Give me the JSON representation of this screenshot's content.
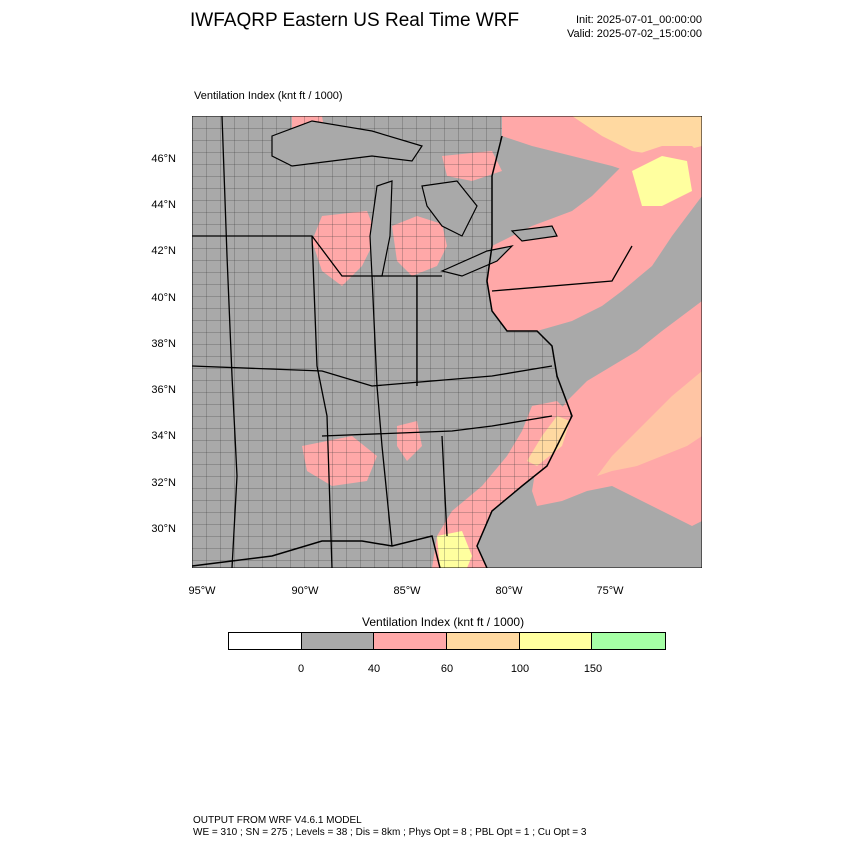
{
  "header": {
    "title": "IWFAQRP Eastern US Real Time WRF",
    "init": "Init: 2025-07-01_00:00:00",
    "valid": "Valid: 2025-07-02_15:00:00"
  },
  "map": {
    "field_label": "Ventilation Index   (knt ft / 1000)",
    "lat_labels": [
      "46°N",
      "44°N",
      "42°N",
      "40°N",
      "38°N",
      "36°N",
      "34°N",
      "32°N",
      "30°N"
    ],
    "lon_labels": [
      "95°W",
      "90°W",
      "85°W",
      "80°W",
      "75°W"
    ],
    "colors": {
      "gray": "#a9a9a9",
      "pink": "#ffa8a8",
      "orange": "#ffd9a1",
      "yellow": "#ffff9f",
      "green": "#a5ffa5"
    }
  },
  "colorbar": {
    "title": "Ventilation Index   (knt ft / 1000)",
    "segments": [
      {
        "color": "#ffffff"
      },
      {
        "color": "#a9a9a9"
      },
      {
        "color": "#ffa8a8"
      },
      {
        "color": "#ffd9a1"
      },
      {
        "color": "#ffff9f"
      },
      {
        "color": "#a5ffa5"
      }
    ],
    "ticks": [
      "0",
      "40",
      "60",
      "100",
      "150"
    ]
  },
  "footer": {
    "line1": "OUTPUT FROM WRF V4.6.1 MODEL",
    "line2": "WE = 310 ; SN = 275 ; Levels = 38 ; Dis = 8km ; Phys Opt = 8 ; PBL Opt = 1 ; Cu Opt = 3"
  }
}
